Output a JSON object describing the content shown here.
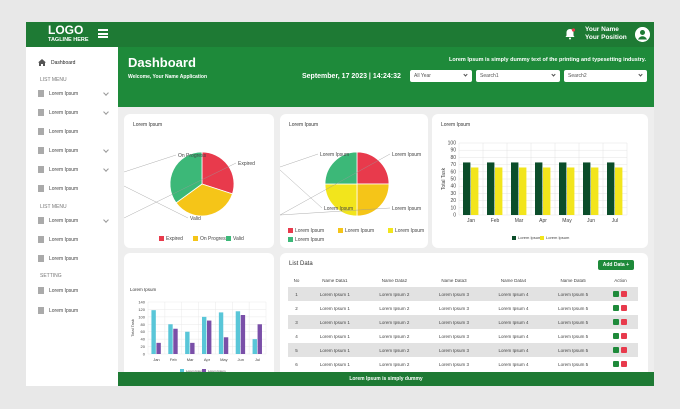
{
  "topbar": {
    "logo": "LOGO",
    "tagline": "TAGLINE HERE",
    "user_name": "Your Name",
    "user_position": "Your Position"
  },
  "sidebar": {
    "dashboard": "Dashboard",
    "section1": "LIST MENU",
    "section2": "LIST MENU",
    "section3": "SETTING",
    "items": [
      "Lorem Ipsum",
      "Lorem Ipsum",
      "Lorem Ipsum",
      "Lorem Ipsum",
      "Lorem Ipsum",
      "Lorem Ipsum",
      "Lorem Ipsum",
      "Lorem Ipsum",
      "Lorem Ipsum",
      "Lorem Ipsum",
      "Lorem Ipsum"
    ]
  },
  "header": {
    "title": "Dashboard",
    "welcome": "Welcome, Your Name Application",
    "tagline": "Lorem Ipsum is simply dummy text of the printing and typesetting industry.",
    "datetime": "September, 17 2023 | 14:24:32",
    "year_select": "All Year",
    "search1": "Search1",
    "search2": "Search2"
  },
  "card1": {
    "title": "Lorem Ipsum"
  },
  "card2": {
    "title": "Lorem Ipsum"
  },
  "card3": {
    "title": "Lorem Ipsum"
  },
  "card4": {
    "title": "Lorem Ipsum"
  },
  "list": {
    "title": "List Data",
    "add_label": "Add Data",
    "headers": [
      "No",
      "Name Data1",
      "Name Data2",
      "Name Data3",
      "Name Data4",
      "Name Data5",
      "Action"
    ],
    "rows": [
      [
        "1",
        "Lorem Ipsum 1",
        "Lorem Ipsum 2",
        "Lorem Ipsum 3",
        "Lorem Ipsum 4",
        "Lorem Ipsum 5"
      ],
      [
        "2",
        "Lorem Ipsum 1",
        "Lorem Ipsum 2",
        "Lorem Ipsum 3",
        "Lorem Ipsum 4",
        "Lorem Ipsum 5"
      ],
      [
        "3",
        "Lorem Ipsum 1",
        "Lorem Ipsum 2",
        "Lorem Ipsum 3",
        "Lorem Ipsum 4",
        "Lorem Ipsum 5"
      ],
      [
        "4",
        "Lorem Ipsum 1",
        "Lorem Ipsum 2",
        "Lorem Ipsum 3",
        "Lorem Ipsum 4",
        "Lorem Ipsum 5"
      ],
      [
        "5",
        "Lorem Ipsum 1",
        "Lorem Ipsum 2",
        "Lorem Ipsum 3",
        "Lorem Ipsum 4",
        "Lorem Ipsum 5"
      ],
      [
        "6",
        "Lorem Ipsum 1",
        "Lorem Ipsum 2",
        "Lorem Ipsum 3",
        "Lorem Ipsum 4",
        "Lorem Ipsum 5"
      ]
    ]
  },
  "footer": "Lorem Ipsum is simply dummy",
  "colors": {
    "green": "#1e8a3a",
    "red": "#e83a4c",
    "yellow": "#f5c518",
    "lightgreen": "#3cb878",
    "darkgreen": "#0b4d2a",
    "brightyellow": "#f2e51c",
    "teal": "#59c6d8",
    "purple": "#7a4fa8"
  },
  "chart_data": [
    {
      "type": "pie",
      "labels": [
        "Expired",
        "On Progress",
        "Valid"
      ],
      "values": [
        30,
        35,
        35
      ],
      "colors": [
        "#e83a4c",
        "#f5c518",
        "#3cb878"
      ]
    },
    {
      "type": "pie",
      "labels": [
        "Lorem Ipsum",
        "Lorem Ipsum",
        "Lorem Ipsum",
        "Lorem Ipsum"
      ],
      "values": [
        25,
        25,
        25,
        25
      ],
      "colors": [
        "#e83a4c",
        "#f5c518",
        "#f2e51c",
        "#3cb878"
      ]
    },
    {
      "type": "bar",
      "categories": [
        "Jan",
        "Feb",
        "Mar",
        "Apr",
        "May",
        "Jun",
        "Jul"
      ],
      "ylabel": "Total Task",
      "ylim": [
        0,
        100
      ],
      "series": [
        {
          "name": "Lorem Ipsum",
          "values": [
            73,
            73,
            73,
            73,
            73,
            73,
            73
          ]
        },
        {
          "name": "Lorem Ipsum",
          "values": [
            66,
            66,
            66,
            66,
            66,
            66,
            66
          ]
        }
      ],
      "colors": [
        "#0b4d2a",
        "#f2e51c"
      ]
    },
    {
      "type": "bar",
      "categories": [
        "Jan",
        "Feb",
        "Mar",
        "Apr",
        "May",
        "Jun",
        "Jul"
      ],
      "ylabel": "Total Task",
      "ylim": [
        0,
        140
      ],
      "series": [
        {
          "name": "Lorem Ipsum",
          "values": [
            118,
            80,
            60,
            100,
            112,
            115,
            40
          ]
        },
        {
          "name": "Lorem Ipsum",
          "values": [
            30,
            68,
            30,
            90,
            45,
            105,
            80
          ]
        }
      ],
      "colors": [
        "#59c6d8",
        "#7a4fa8"
      ]
    }
  ]
}
